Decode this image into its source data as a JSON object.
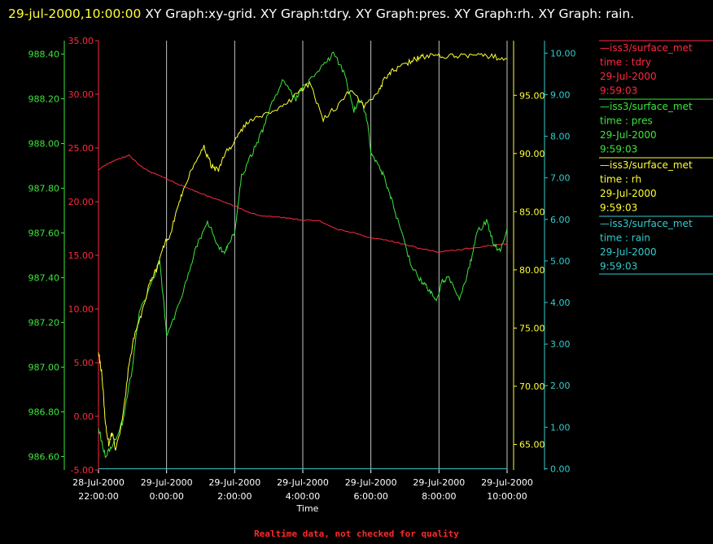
{
  "header": {
    "timestamp": "29-jul-2000,10:00:00",
    "title_text": " XY Graph:xy-grid.  XY Graph:tdry.  XY Graph:pres.  XY Graph:rh.  XY Graph: rain."
  },
  "footer": {
    "note": "Realtime data, not checked for quality"
  },
  "colors": {
    "tdry": "#ff2a40",
    "pres": "#3ce63c",
    "rh": "#ffff33",
    "rain": "#33cccc",
    "grid": "#ffffff"
  },
  "chart_data": {
    "type": "line",
    "xlabel": "Time",
    "x_ticks": [
      {
        "hour": 0,
        "line1": "28-Jul-2000",
        "line2": "22:00:00"
      },
      {
        "hour": 2,
        "line1": "29-Jul-2000",
        "line2": "0:00:00"
      },
      {
        "hour": 4,
        "line1": "29-Jul-2000",
        "line2": "2:00:00"
      },
      {
        "hour": 6,
        "line1": "29-Jul-2000",
        "line2": "4:00:00"
      },
      {
        "hour": 8,
        "line1": "29-Jul-2000",
        "line2": "6:00:00"
      },
      {
        "hour": 10,
        "line1": "29-Jul-2000",
        "line2": "8:00:00"
      },
      {
        "hour": 12,
        "line1": "29-Jul-2000",
        "line2": "10:00:00"
      }
    ],
    "grid": "vertical",
    "axes": {
      "pres": {
        "range": [
          986.54,
          988.46
        ],
        "ticks": [
          "986.60",
          "986.80",
          "987.00",
          "987.20",
          "987.40",
          "987.60",
          "987.80",
          "988.00",
          "988.20",
          "988.40"
        ],
        "tick_values": [
          986.6,
          986.8,
          987.0,
          987.2,
          987.4,
          987.6,
          987.8,
          988.0,
          988.2,
          988.4
        ]
      },
      "tdry": {
        "range": [
          -5,
          35
        ],
        "ticks": [
          "-5.00",
          "0.00",
          "5.00",
          "10.00",
          "15.00",
          "20.00",
          "25.00",
          "30.00",
          "35.00"
        ],
        "tick_values": [
          -5,
          0,
          5,
          10,
          15,
          20,
          25,
          30,
          35
        ]
      },
      "rh": {
        "range": [
          62.8,
          99.7
        ],
        "ticks": [
          "65.00",
          "70.00",
          "75.00",
          "80.00",
          "85.00",
          "90.00",
          "95.00"
        ],
        "tick_values": [
          65,
          70,
          75,
          80,
          85,
          90,
          95
        ]
      },
      "rain": {
        "range": [
          -0.03,
          10.3
        ],
        "ticks": [
          "0.00",
          "1.00",
          "2.00",
          "3.00",
          "4.00",
          "5.00",
          "6.00",
          "7.00",
          "8.00",
          "9.00",
          "10.00"
        ],
        "tick_values": [
          0,
          1,
          2,
          3,
          4,
          5,
          6,
          7,
          8,
          9,
          10
        ]
      }
    },
    "series": [
      {
        "name": "tdry",
        "axis": "tdry",
        "x": [
          0,
          0.3,
          0.6,
          0.9,
          1.2,
          1.5,
          2,
          2.5,
          3,
          3.5,
          4,
          4.5,
          5,
          5.5,
          6,
          6.5,
          7,
          7.5,
          8,
          8.5,
          9,
          9.5,
          10,
          10.5,
          11,
          11.5,
          12
        ],
        "y": [
          23,
          23.6,
          24,
          24.3,
          23.4,
          22.8,
          22.1,
          21.4,
          20.8,
          20.2,
          19.6,
          18.9,
          18.6,
          18.5,
          18.3,
          18.2,
          17.4,
          17.1,
          16.6,
          16.4,
          16,
          15.6,
          15.3,
          15.5,
          15.7,
          15.9,
          16.1
        ]
      },
      {
        "name": "pres",
        "axis": "pres",
        "x": [
          0,
          0.2,
          0.4,
          0.7,
          1,
          1.2,
          1.5,
          1.8,
          2.0,
          2.3,
          2.6,
          2.9,
          3.2,
          3.5,
          3.7,
          3.8,
          4.0,
          4.2,
          4.5,
          4.8,
          5.0,
          5.4,
          5.8,
          6.0,
          6.3,
          6.6,
          6.9,
          7.2,
          7.5,
          7.7,
          7.9,
          8.0,
          8.2,
          8.4,
          8.6,
          8.9,
          9.2,
          9.5,
          9.7,
          9.9,
          10.1,
          10.3,
          10.6,
          10.9,
          11.1,
          11.4,
          11.6,
          11.8,
          12.0
        ],
        "y": [
          986.73,
          986.6,
          986.65,
          986.75,
          987.0,
          987.25,
          987.35,
          987.48,
          987.15,
          987.25,
          987.4,
          987.55,
          987.65,
          987.55,
          987.5,
          987.55,
          987.6,
          987.85,
          987.95,
          988.05,
          988.15,
          988.28,
          988.2,
          988.25,
          988.3,
          988.35,
          988.4,
          988.32,
          988.15,
          988.2,
          988.1,
          987.95,
          987.9,
          987.85,
          987.75,
          987.6,
          987.45,
          987.38,
          987.35,
          987.3,
          987.38,
          987.4,
          987.3,
          987.45,
          987.6,
          987.65,
          987.55,
          987.52,
          987.62
        ]
      },
      {
        "name": "rh",
        "axis": "rh",
        "x": [
          0,
          0.1,
          0.2,
          0.3,
          0.4,
          0.5,
          0.7,
          0.9,
          1.1,
          1.3,
          1.5,
          1.7,
          1.9,
          2.1,
          2.3,
          2.5,
          2.8,
          3.1,
          3.3,
          3.5,
          3.7,
          4.0,
          4.3,
          4.6,
          5.0,
          5.4,
          5.8,
          6.2,
          6.6,
          7.0,
          7.4,
          7.8,
          8.2,
          8.4,
          8.6,
          8.9,
          9.2,
          9.4,
          9.6,
          10,
          10.4,
          10.8,
          11.2,
          11.6,
          12
        ],
        "y": [
          73,
          71,
          67,
          65,
          66,
          64.5,
          67,
          72,
          75,
          76.5,
          79,
          80,
          82,
          83,
          85,
          87,
          89,
          90.5,
          89,
          88.5,
          90,
          91,
          92.5,
          93,
          93.5,
          94,
          95,
          96,
          93,
          94,
          95.5,
          94,
          95,
          96.5,
          97,
          97.5,
          98,
          98.2,
          98.4,
          98.5,
          98.3,
          98.4,
          98.5,
          98.3,
          98.2
        ]
      },
      {
        "name": "rain",
        "axis": "rain",
        "x": [
          0,
          12
        ],
        "y": [
          0,
          0
        ]
      }
    ],
    "legend": {
      "placement": "right",
      "entries": [
        {
          "series": "tdry",
          "source": "iss3/surface_met",
          "var": "time : tdry",
          "date": "29-Jul-2000",
          "time": "9:59:03"
        },
        {
          "series": "pres",
          "source": "iss3/surface_met",
          "var": "time : pres",
          "date": "29-Jul-2000",
          "time": "9:59:03"
        },
        {
          "series": "rh",
          "source": "iss3/surface_met",
          "var": "time : rh",
          "date": "29-Jul-2000",
          "time": "9:59:03"
        },
        {
          "series": "rain",
          "source": "iss3/surface_met",
          "var": "time : rain",
          "date": "29-Jul-2000",
          "time": "9:59:03"
        }
      ]
    }
  }
}
